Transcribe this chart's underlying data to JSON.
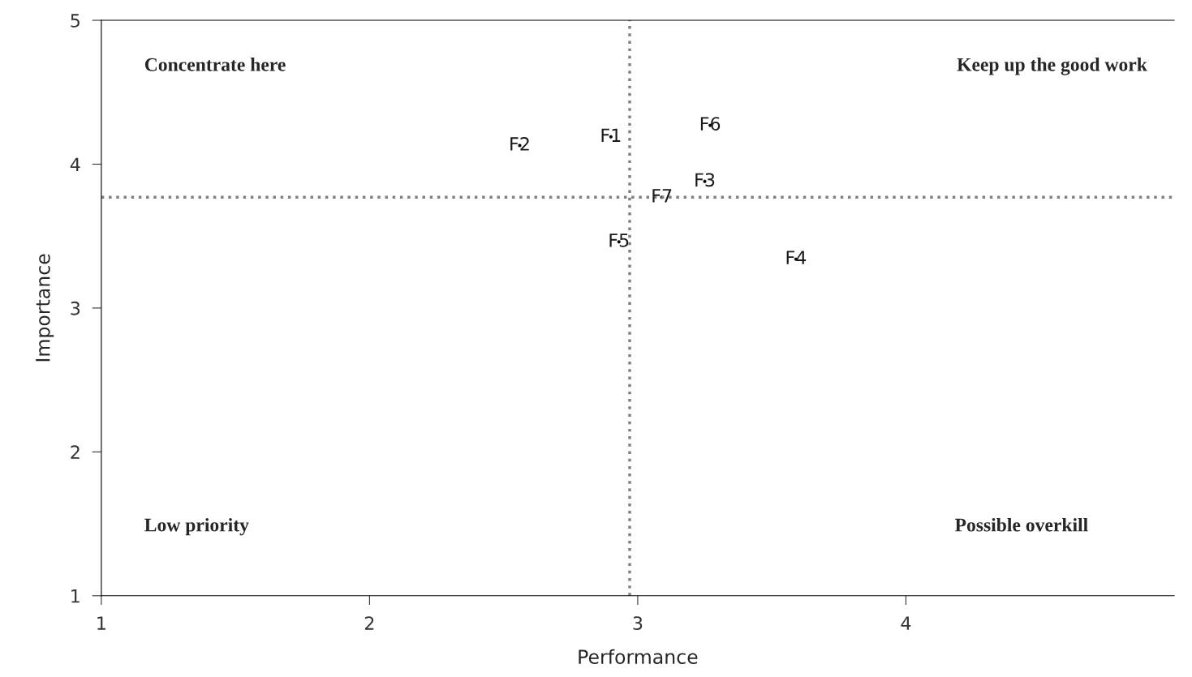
{
  "chart_data": {
    "type": "scatter",
    "xlabel": "Performance",
    "ylabel": "Importance",
    "x": [
      2.9,
      2.56,
      3.25,
      3.59,
      2.93,
      3.27,
      3.09
    ],
    "series": [
      {
        "color": "#000000",
        "values": [
          4.19,
          4.13,
          3.88,
          3.34,
          3.46,
          4.27,
          3.77
        ],
        "value_labels": [
          "F1",
          "F2",
          "F3",
          "F4",
          "F5",
          "F6",
          "F7"
        ]
      }
    ],
    "xlim": [
      1,
      5
    ],
    "ylim": [
      1,
      5
    ],
    "xticks": [
      1,
      2,
      3,
      4
    ],
    "yticks": [
      1,
      2,
      3,
      4,
      5
    ],
    "ref_lines": [
      {
        "axis": "x",
        "value": 2.97,
        "color": "#808080",
        "line_style": "dotted"
      },
      {
        "axis": "y",
        "value": 3.77,
        "color": "#808080",
        "line_style": "dotted"
      }
    ],
    "annotations": [
      "Concentrate here",
      "Keep up the good work",
      "Low priority",
      "Possible overkill"
    ],
    "grid": false,
    "legend": false
  }
}
